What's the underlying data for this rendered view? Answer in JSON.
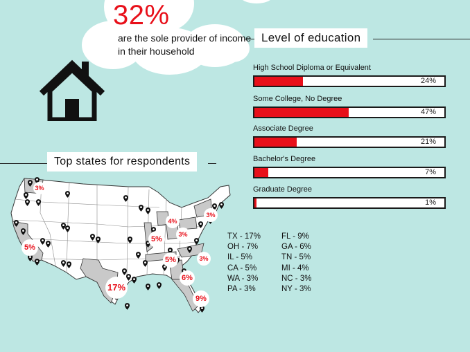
{
  "stat": {
    "percent": "32%",
    "description": "are the sole provider of income in their household"
  },
  "education": {
    "title": "Level of education",
    "items": [
      {
        "label": "High School Diploma or Equivalent",
        "value": "24%",
        "pct": 24
      },
      {
        "label": "Some College, No Degree",
        "value": "47%",
        "pct": 47
      },
      {
        "label": "Associate Degree",
        "value": "21%",
        "pct": 21
      },
      {
        "label": "Bachelor's Degree",
        "value": "7%",
        "pct": 7
      },
      {
        "label": "Graduate Degree",
        "value": "1%",
        "pct": 1
      }
    ]
  },
  "states": {
    "title": "Top states for respondents",
    "map_labels": [
      "3%",
      "5%",
      "4%",
      "5%",
      "3%",
      "3%",
      "3%",
      "5%",
      "6%",
      "17%",
      "9%"
    ],
    "list": [
      [
        "TX - 17%",
        "FL - 9%"
      ],
      [
        "OH - 7%",
        "GA - 6%"
      ],
      [
        "IL - 5%",
        "TN - 5%"
      ],
      [
        "CA - 5%",
        "MI - 4%"
      ],
      [
        "WA - 3%",
        "NC - 3%"
      ],
      [
        "PA - 3%",
        "NY - 3%"
      ]
    ]
  },
  "colors": {
    "background": "#bde7e3",
    "accent": "#e8101a",
    "highlight_state": "#c9c9c9",
    "map_fill": "#ffffff"
  },
  "icons": [
    "house-icon",
    "map-pin-icon"
  ]
}
